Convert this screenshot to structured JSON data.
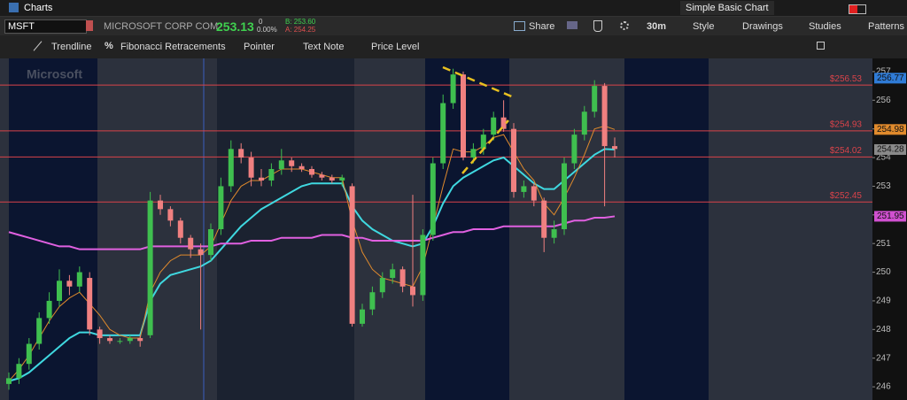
{
  "header": {
    "title": "Charts",
    "layout": "Simple Basic Chart"
  },
  "quote": {
    "symbol": "MSFT",
    "company": "MICROSOFT CORP COM",
    "last": "253.13",
    "change": "0",
    "change_pct": "0.00%",
    "bid": "B: 253.60",
    "ask": "A: 254.25"
  },
  "toolbar": [
    "Share",
    "30m",
    "Style",
    "Drawings",
    "Studies",
    "Patterns"
  ],
  "tools": [
    "Trendline",
    "Fibonacci Retracements",
    "Pointer",
    "Text Note",
    "Price Level"
  ],
  "chart": {
    "type": "candlestick",
    "watermark": "Microsoft",
    "ylim": [
      245.54,
      257.46
    ],
    "yticks": [
      246,
      247,
      248,
      249,
      250,
      251,
      252,
      253,
      254,
      255,
      256,
      257
    ],
    "up_color": "#3fbf4f",
    "down_color": "#f08080",
    "candles": [
      [
        246.1,
        246.5,
        245.9,
        246.3
      ],
      [
        246.3,
        247.0,
        246.1,
        246.8
      ],
      [
        246.8,
        247.7,
        246.6,
        247.5
      ],
      [
        247.5,
        248.6,
        247.3,
        248.4
      ],
      [
        248.4,
        249.3,
        248.2,
        249.0
      ],
      [
        249.0,
        250.1,
        248.8,
        249.7
      ],
      [
        249.7,
        249.9,
        249.2,
        249.5
      ],
      [
        249.5,
        250.2,
        249.3,
        250.0
      ],
      [
        249.8,
        250.0,
        247.8,
        248.0
      ],
      [
        248.0,
        248.1,
        247.5,
        247.7
      ],
      [
        247.7,
        247.8,
        247.5,
        247.6
      ],
      [
        247.6,
        247.7,
        247.5,
        247.6
      ],
      [
        247.6,
        247.8,
        247.5,
        247.7
      ],
      [
        247.7,
        247.8,
        247.4,
        247.6
      ],
      [
        247.8,
        252.8,
        247.7,
        252.5
      ],
      [
        252.5,
        252.7,
        252.0,
        252.2
      ],
      [
        252.2,
        252.3,
        251.6,
        251.8
      ],
      [
        251.8,
        251.9,
        251.0,
        251.2
      ],
      [
        251.2,
        251.3,
        250.5,
        250.8
      ],
      [
        250.8,
        251.0,
        248.0,
        250.6
      ],
      [
        250.6,
        251.7,
        250.4,
        251.5
      ],
      [
        251.5,
        253.3,
        251.3,
        253.0
      ],
      [
        253.0,
        254.6,
        252.8,
        254.3
      ],
      [
        254.3,
        254.5,
        253.8,
        254.0
      ],
      [
        254.0,
        254.2,
        253.0,
        253.3
      ],
      [
        253.3,
        253.6,
        253.0,
        253.2
      ],
      [
        253.2,
        253.8,
        253.0,
        253.6
      ],
      [
        253.6,
        254.3,
        253.4,
        253.9
      ],
      [
        253.9,
        254.0,
        253.5,
        253.7
      ],
      [
        253.7,
        253.8,
        253.5,
        253.6
      ],
      [
        253.6,
        253.7,
        253.3,
        253.4
      ],
      [
        253.4,
        253.5,
        253.2,
        253.3
      ],
      [
        253.3,
        253.4,
        253.1,
        253.2
      ],
      [
        253.2,
        253.4,
        253.0,
        253.3
      ],
      [
        253.0,
        253.1,
        248.1,
        248.2
      ],
      [
        248.2,
        248.9,
        248.1,
        248.7
      ],
      [
        248.7,
        249.5,
        248.5,
        249.3
      ],
      [
        249.3,
        250.0,
        249.1,
        249.8
      ],
      [
        249.8,
        250.3,
        249.6,
        250.1
      ],
      [
        250.1,
        250.2,
        249.3,
        249.5
      ],
      [
        249.5,
        252.7,
        248.8,
        249.2
      ],
      [
        249.2,
        251.5,
        249.0,
        251.3
      ],
      [
        251.3,
        254.0,
        251.1,
        253.8
      ],
      [
        253.8,
        256.2,
        253.6,
        255.9
      ],
      [
        255.9,
        257.1,
        255.7,
        256.9
      ],
      [
        256.9,
        257.0,
        253.9,
        254.0
      ],
      [
        254.0,
        254.5,
        253.8,
        254.3
      ],
      [
        254.3,
        255.0,
        254.1,
        254.8
      ],
      [
        254.8,
        255.6,
        254.6,
        255.4
      ],
      [
        255.4,
        256.0,
        254.9,
        255.0
      ],
      [
        255.0,
        255.2,
        252.6,
        252.8
      ],
      [
        252.8,
        253.2,
        252.6,
        253.0
      ],
      [
        253.0,
        253.1,
        252.3,
        252.5
      ],
      [
        252.5,
        252.6,
        250.7,
        251.2
      ],
      [
        251.2,
        251.8,
        251.0,
        251.5
      ],
      [
        251.5,
        254.0,
        251.3,
        253.8
      ],
      [
        253.8,
        255.0,
        253.6,
        254.8
      ],
      [
        254.8,
        255.8,
        254.6,
        255.6
      ],
      [
        255.6,
        256.7,
        255.4,
        256.5
      ],
      [
        256.5,
        256.6,
        252.3,
        254.4
      ],
      [
        254.4,
        254.7,
        254.0,
        254.3
      ]
    ],
    "studies": [
      {
        "color": "#3fd8e0",
        "values": [
          246.2,
          246.3,
          246.5,
          246.8,
          247.1,
          247.4,
          247.7,
          247.9,
          247.9,
          247.8,
          247.8,
          247.8,
          247.8,
          247.8,
          249.0,
          249.6,
          249.9,
          250.0,
          250.1,
          250.2,
          250.4,
          250.8,
          251.2,
          251.6,
          251.9,
          252.2,
          252.4,
          252.6,
          252.8,
          253.0,
          253.1,
          253.1,
          253.1,
          253.1,
          252.3,
          251.8,
          251.5,
          251.3,
          251.1,
          251.0,
          250.9,
          251.0,
          251.6,
          252.4,
          253.0,
          253.3,
          253.5,
          253.7,
          253.9,
          254.0,
          253.7,
          253.4,
          253.1,
          252.9,
          252.9,
          253.2,
          253.5,
          253.8,
          254.1,
          254.3,
          254.28
        ]
      },
      {
        "color": "#e08a2c",
        "values": [
          246.2,
          246.6,
          247.1,
          247.7,
          248.3,
          248.8,
          249.1,
          249.3,
          248.9,
          248.5,
          248.0,
          247.8,
          247.7,
          247.7,
          249.3,
          250.0,
          250.4,
          250.6,
          250.6,
          250.6,
          250.9,
          251.7,
          252.5,
          253.0,
          253.2,
          253.2,
          253.4,
          253.6,
          253.6,
          253.6,
          253.5,
          253.4,
          253.3,
          253.3,
          251.8,
          250.7,
          250.1,
          249.8,
          249.7,
          249.6,
          249.5,
          250.2,
          251.6,
          253.0,
          254.3,
          254.2,
          254.2,
          254.4,
          254.7,
          254.8,
          254.2,
          253.6,
          253.2,
          252.4,
          252.0,
          252.6,
          253.3,
          254.1,
          255.0,
          255.1,
          254.98
        ]
      },
      {
        "color": "#e060e0",
        "values": [
          251.4,
          251.3,
          251.2,
          251.1,
          251.0,
          250.9,
          250.9,
          250.8,
          250.8,
          250.8,
          250.8,
          250.8,
          250.8,
          250.8,
          250.9,
          250.9,
          250.9,
          250.9,
          250.9,
          250.9,
          250.9,
          251.0,
          251.0,
          251.0,
          251.1,
          251.1,
          251.1,
          251.2,
          251.2,
          251.2,
          251.2,
          251.3,
          251.3,
          251.3,
          251.2,
          251.2,
          251.1,
          251.1,
          251.1,
          251.1,
          251.1,
          251.1,
          251.2,
          251.3,
          251.4,
          251.4,
          251.5,
          251.5,
          251.5,
          251.6,
          251.6,
          251.6,
          251.6,
          251.6,
          251.6,
          251.7,
          251.8,
          251.8,
          251.9,
          251.9,
          251.95
        ]
      }
    ],
    "price_levels": [
      {
        "value": 256.53,
        "label": "$256.53"
      },
      {
        "value": 254.93,
        "label": "$254.93"
      },
      {
        "value": 254.02,
        "label": "$254.02"
      },
      {
        "value": 252.45,
        "label": "$252.45"
      }
    ],
    "level_color": "#d9434a",
    "tags": [
      {
        "value": 256.77,
        "color": "#2f7bd6"
      },
      {
        "value": 254.98,
        "color": "#e08a2c"
      },
      {
        "value": 254.28,
        "color": "#8a8a8a"
      },
      {
        "value": 251.95,
        "color": "#d050d0"
      }
    ]
  }
}
